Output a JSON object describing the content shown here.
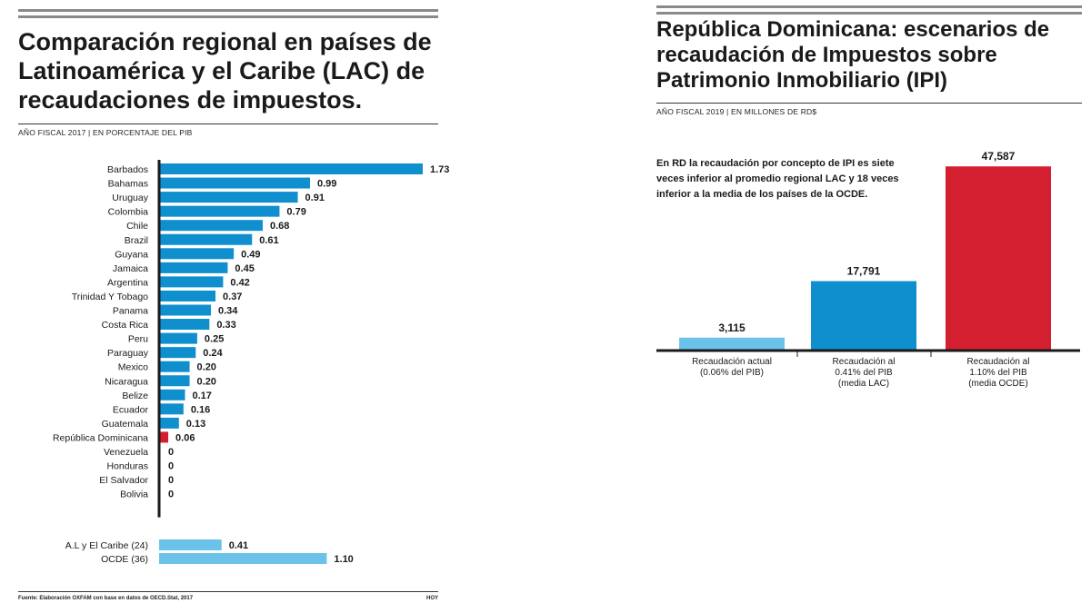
{
  "left": {
    "title": "Comparación regional en países de Latinoamérica y el Caribe (LAC) de recaudaciones de impuestos.",
    "subtitle": "AÑO FISCAL 2017 | EN PORCENTAJE DEL PIB",
    "source": "Fuente: Elaboración OXFAM con base en datos de OECD.Stat, 2017",
    "credit": "HOY"
  },
  "right": {
    "title": "República Dominicana: escenarios de recaudación de Impuestos sobre Patrimonio Inmobiliario (IPI)",
    "subtitle": "AÑO FISCAL 2019 | EN MILLONES DE RD$",
    "description": "En RD la recaudación por concepto de IPI es siete veces inferior al promedio regional LAC y 18 veces inferior a la media de los países de la OCDE."
  },
  "colors": {
    "blue": "#0f8fcd",
    "light_blue": "#6cc3ea",
    "red": "#d41f31"
  },
  "chart_data": [
    {
      "type": "bar",
      "orientation": "horizontal",
      "unit": "% del PIB",
      "categories": [
        "Barbados",
        "Bahamas",
        "Uruguay",
        "Colombia",
        "Chile",
        "Brazil",
        "Guyana",
        "Jamaica",
        "Argentina",
        "Trinidad Y Tobago",
        "Panama",
        "Costa Rica",
        "Peru",
        "Paraguay",
        "Mexico",
        "Nicaragua",
        "Belize",
        "Ecuador",
        "Guatemala",
        "República Dominicana",
        "Venezuela",
        "Honduras",
        "El Salvador",
        "Bolivia"
      ],
      "values": [
        1.73,
        0.99,
        0.91,
        0.79,
        0.68,
        0.61,
        0.49,
        0.45,
        0.42,
        0.37,
        0.34,
        0.33,
        0.25,
        0.24,
        0.2,
        0.2,
        0.17,
        0.16,
        0.13,
        0.06,
        0,
        0,
        0,
        0
      ],
      "labels": [
        "1.73",
        "0.99",
        "0.91",
        "0.79",
        "0.68",
        "0.61",
        "0.49",
        "0.45",
        "0.42",
        "0.37",
        "0.34",
        "0.33",
        "0.25",
        "0.24",
        "0.20",
        "0.20",
        "0.17",
        "0.16",
        "0.13",
        "0.06",
        "0",
        "0",
        "0",
        "0"
      ],
      "highlight": "República Dominicana",
      "xlim": [
        0,
        1.8
      ],
      "references": [
        {
          "name": "A.L y El Caribe (24)",
          "value": 0.41,
          "label": "0.41"
        },
        {
          "name": "OCDE (36)",
          "value": 1.1,
          "label": "1.10"
        }
      ]
    },
    {
      "type": "bar",
      "orientation": "vertical",
      "unit": "millones de RD$",
      "categories": [
        [
          "Recaudación actual",
          "(0.06% del PIB)"
        ],
        [
          "Recaudación al",
          "0.41% del PIB",
          "(media LAC)"
        ],
        [
          "Recaudación al",
          "1.10% del PIB",
          "(media OCDE)"
        ]
      ],
      "values": [
        3115,
        17791,
        47587
      ],
      "labels": [
        "3,115",
        "17,791",
        "47,587"
      ],
      "ylim": [
        0,
        50000
      ]
    }
  ]
}
